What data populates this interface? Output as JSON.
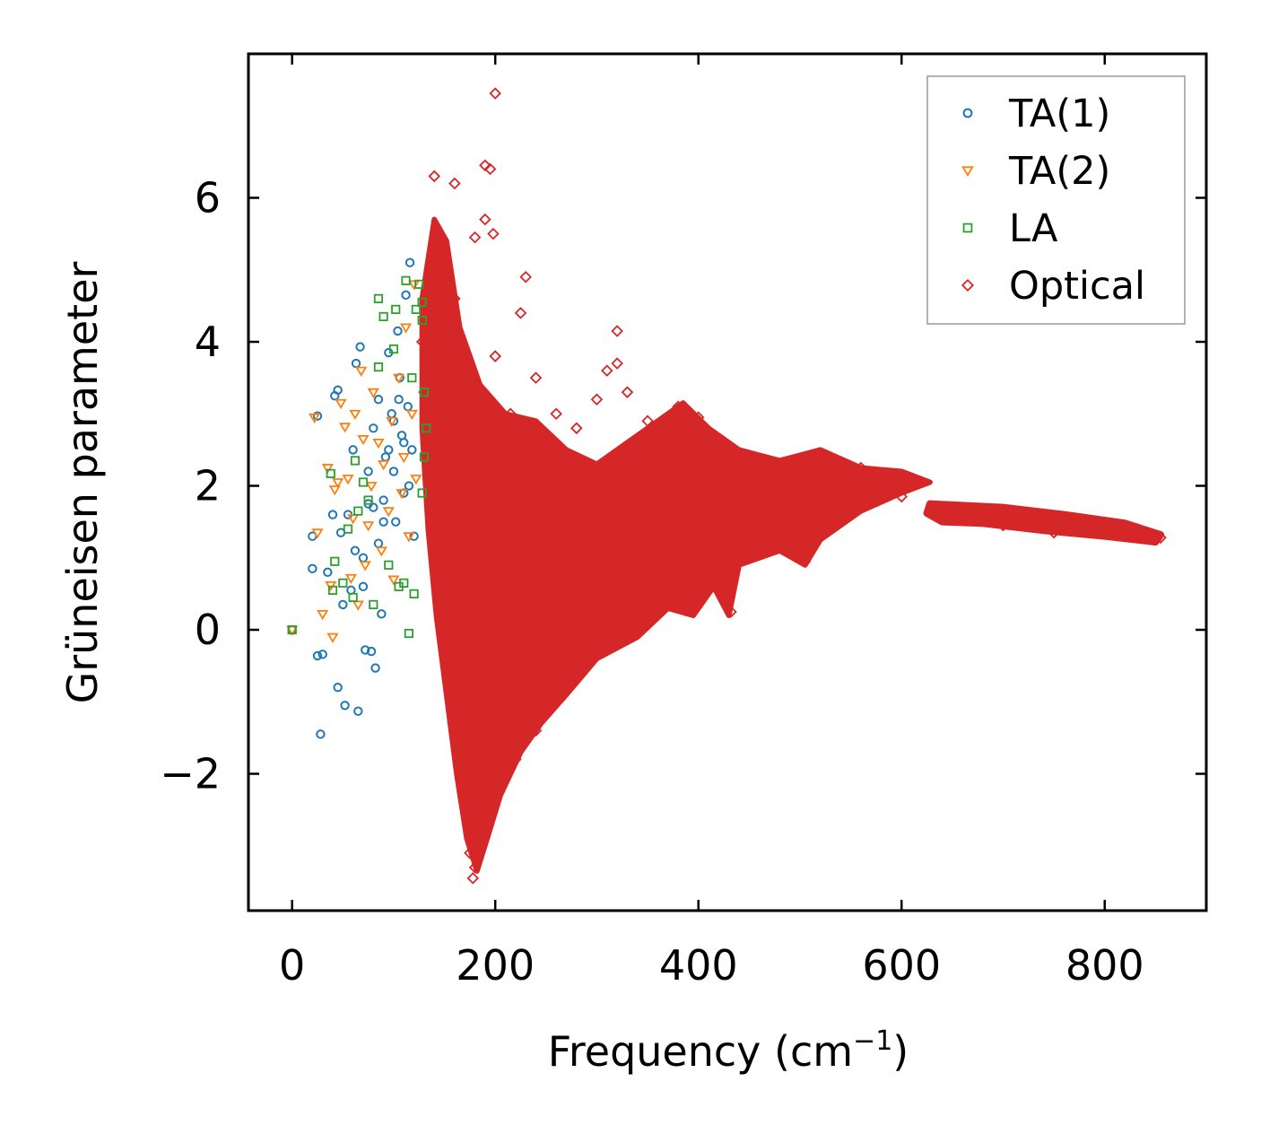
{
  "chart_data": {
    "type": "scatter",
    "title": "",
    "xlabel": "Frequency (cm",
    "xlabel_sup": "−1",
    "xlabel_close": ")",
    "ylabel": "Grüneisen parameter",
    "xlim": [
      -43,
      900
    ],
    "ylim": [
      -3.9,
      8.0
    ],
    "xticks": [
      0,
      200,
      400,
      600,
      800
    ],
    "xtick_labels": [
      "0",
      "200",
      "400",
      "600",
      "800"
    ],
    "yticks": [
      -2,
      0,
      2,
      4,
      6
    ],
    "ytick_labels": [
      "−2",
      "0",
      "2",
      "4",
      "6"
    ],
    "grid": false,
    "legend_position": "top-right",
    "series": [
      {
        "name": "TA(1)",
        "marker": "circle",
        "color": "#1f77b4",
        "points": [
          [
            0,
            0
          ],
          [
            20,
            1.3
          ],
          [
            20,
            0.85
          ],
          [
            25,
            2.97
          ],
          [
            25,
            -0.36
          ],
          [
            28,
            -1.45
          ],
          [
            30,
            -0.34
          ],
          [
            35,
            0.8
          ],
          [
            40,
            1.6
          ],
          [
            42,
            3.25
          ],
          [
            45,
            -0.8
          ],
          [
            45,
            3.33
          ],
          [
            48,
            1.35
          ],
          [
            50,
            0.35
          ],
          [
            52,
            -1.05
          ],
          [
            55,
            1.6
          ],
          [
            58,
            0.55
          ],
          [
            60,
            2.5
          ],
          [
            62,
            1.1
          ],
          [
            63,
            3.7
          ],
          [
            65,
            -1.13
          ],
          [
            67,
            3.93
          ],
          [
            70,
            0.6
          ],
          [
            72,
            -0.28
          ],
          [
            75,
            1.75
          ],
          [
            78,
            -0.3
          ],
          [
            80,
            2.8
          ],
          [
            82,
            -0.53
          ],
          [
            85,
            3.2
          ],
          [
            88,
            0.22
          ],
          [
            90,
            1.8
          ],
          [
            92,
            2.4
          ],
          [
            95,
            3.85
          ],
          [
            98,
            3.0
          ],
          [
            100,
            2.2
          ],
          [
            102,
            1.5
          ],
          [
            104,
            4.15
          ],
          [
            106,
            3.5
          ],
          [
            108,
            2.7
          ],
          [
            110,
            1.9
          ],
          [
            112,
            4.65
          ],
          [
            114,
            3.1
          ],
          [
            116,
            5.1
          ],
          [
            118,
            2.5
          ],
          [
            120,
            1.3
          ],
          [
            100,
            2.9
          ],
          [
            105,
            3.2
          ],
          [
            110,
            2.6
          ],
          [
            115,
            2.0
          ],
          [
            95,
            2.5
          ],
          [
            90,
            1.5
          ],
          [
            85,
            1.2
          ],
          [
            80,
            1.7
          ],
          [
            75,
            2.2
          ],
          [
            70,
            1.0
          ]
        ]
      },
      {
        "name": "TA(2)",
        "marker": "triangle-down",
        "color": "#ff7f0e",
        "points": [
          [
            0,
            0
          ],
          [
            22,
            2.95
          ],
          [
            25,
            1.35
          ],
          [
            30,
            0.22
          ],
          [
            35,
            2.25
          ],
          [
            38,
            0.62
          ],
          [
            40,
            -0.1
          ],
          [
            42,
            1.95
          ],
          [
            45,
            2.05
          ],
          [
            48,
            3.15
          ],
          [
            52,
            2.82
          ],
          [
            55,
            2.1
          ],
          [
            58,
            0.72
          ],
          [
            60,
            1.55
          ],
          [
            62,
            3.0
          ],
          [
            65,
            0.35
          ],
          [
            68,
            3.6
          ],
          [
            70,
            2.65
          ],
          [
            72,
            0.9
          ],
          [
            75,
            1.45
          ],
          [
            78,
            2.0
          ],
          [
            80,
            3.3
          ],
          [
            85,
            2.6
          ],
          [
            88,
            1.1
          ],
          [
            90,
            2.3
          ],
          [
            95,
            1.65
          ],
          [
            98,
            2.9
          ],
          [
            100,
            0.7
          ],
          [
            105,
            3.5
          ],
          [
            108,
            1.9
          ],
          [
            110,
            2.4
          ],
          [
            112,
            4.2
          ],
          [
            115,
            1.3
          ],
          [
            118,
            3.0
          ],
          [
            120,
            4.8
          ],
          [
            122,
            2.1
          ]
        ]
      },
      {
        "name": "LA",
        "marker": "square",
        "color": "#2ca02c",
        "points": [
          [
            0,
            0
          ],
          [
            38,
            2.17
          ],
          [
            40,
            0.55
          ],
          [
            42,
            0.95
          ],
          [
            50,
            0.65
          ],
          [
            55,
            1.4
          ],
          [
            60,
            0.45
          ],
          [
            62,
            2.35
          ],
          [
            65,
            1.65
          ],
          [
            70,
            2.05
          ],
          [
            75,
            1.8
          ],
          [
            80,
            0.35
          ],
          [
            85,
            3.65
          ],
          [
            85,
            4.6
          ],
          [
            90,
            4.35
          ],
          [
            95,
            0.9
          ],
          [
            100,
            3.9
          ],
          [
            102,
            4.45
          ],
          [
            105,
            0.6
          ],
          [
            110,
            0.65
          ],
          [
            112,
            4.85
          ],
          [
            115,
            -0.05
          ],
          [
            118,
            3.5
          ],
          [
            120,
            0.5
          ],
          [
            122,
            4.45
          ],
          [
            125,
            4.8
          ],
          [
            128,
            4.3
          ],
          [
            128,
            4.55
          ],
          [
            130,
            3.3
          ],
          [
            132,
            2.8
          ],
          [
            130,
            2.4
          ],
          [
            128,
            1.9
          ]
        ]
      },
      {
        "name": "Optical",
        "marker": "diamond",
        "color": "#d62728",
        "points": [
          [
            200,
            7.45
          ],
          [
            140,
            6.3
          ],
          [
            160,
            6.2
          ],
          [
            190,
            6.45
          ],
          [
            195,
            6.4
          ],
          [
            190,
            5.7
          ],
          [
            180,
            5.45
          ],
          [
            198,
            5.5
          ],
          [
            230,
            4.9
          ],
          [
            225,
            4.4
          ],
          [
            240,
            3.5
          ],
          [
            250,
            2.6
          ],
          [
            320,
            4.15
          ],
          [
            320,
            3.7
          ],
          [
            330,
            3.3
          ],
          [
            310,
            3.6
          ],
          [
            300,
            3.2
          ],
          [
            280,
            2.8
          ],
          [
            350,
            2.9
          ],
          [
            380,
            3.1
          ],
          [
            400,
            2.95
          ],
          [
            420,
            2.6
          ],
          [
            450,
            2.4
          ],
          [
            480,
            2.3
          ],
          [
            520,
            2.45
          ],
          [
            560,
            2.25
          ],
          [
            600,
            2.15
          ],
          [
            620,
            2.05
          ],
          [
            640,
            1.7
          ],
          [
            680,
            1.6
          ],
          [
            720,
            1.55
          ],
          [
            760,
            1.5
          ],
          [
            800,
            1.45
          ],
          [
            840,
            1.35
          ],
          [
            855,
            1.28
          ],
          [
            750,
            1.35
          ],
          [
            700,
            1.45
          ],
          [
            650,
            1.55
          ],
          [
            600,
            1.85
          ],
          [
            550,
            1.7
          ],
          [
            500,
            1.3
          ],
          [
            505,
            0.95
          ],
          [
            430,
            0.6
          ],
          [
            432,
            0.25
          ],
          [
            380,
            0.8
          ],
          [
            360,
            0.4
          ],
          [
            330,
            0.1
          ],
          [
            300,
            -0.2
          ],
          [
            280,
            -0.5
          ],
          [
            260,
            -0.95
          ],
          [
            240,
            -1.4
          ],
          [
            220,
            -1.8
          ],
          [
            200,
            -2.2
          ],
          [
            190,
            -2.7
          ],
          [
            185,
            -2.95
          ],
          [
            180,
            -3.3
          ],
          [
            178,
            -3.45
          ],
          [
            175,
            -3.1
          ],
          [
            170,
            -2.4
          ],
          [
            165,
            -1.9
          ],
          [
            160,
            -1.2
          ],
          [
            155,
            -0.6
          ],
          [
            150,
            0.05
          ],
          [
            145,
            0.6
          ],
          [
            140,
            1.2
          ],
          [
            135,
            1.9
          ],
          [
            132,
            2.6
          ],
          [
            130,
            3.3
          ],
          [
            128,
            4.0
          ],
          [
            140,
            5.0
          ],
          [
            150,
            5.3
          ],
          [
            160,
            4.6
          ],
          [
            170,
            3.8
          ],
          [
            180,
            3.2
          ],
          [
            200,
            2.5
          ],
          [
            220,
            2.0
          ],
          [
            250,
            1.7
          ],
          [
            280,
            1.5
          ],
          [
            320,
            1.4
          ],
          [
            360,
            1.6
          ],
          [
            400,
            1.5
          ],
          [
            450,
            1.4
          ],
          [
            200,
            0.0
          ],
          [
            210,
            -1.0
          ],
          [
            230,
            0.5
          ],
          [
            260,
            0.3
          ],
          [
            300,
            0.8
          ],
          [
            350,
            1.0
          ],
          [
            420,
            1.8
          ],
          [
            470,
            1.9
          ],
          [
            180,
            1.0
          ],
          [
            170,
            0.2
          ],
          [
            190,
            -1.5
          ],
          [
            200,
            3.8
          ],
          [
            215,
            3.0
          ],
          [
            260,
            3.0
          ]
        ]
      }
    ]
  }
}
